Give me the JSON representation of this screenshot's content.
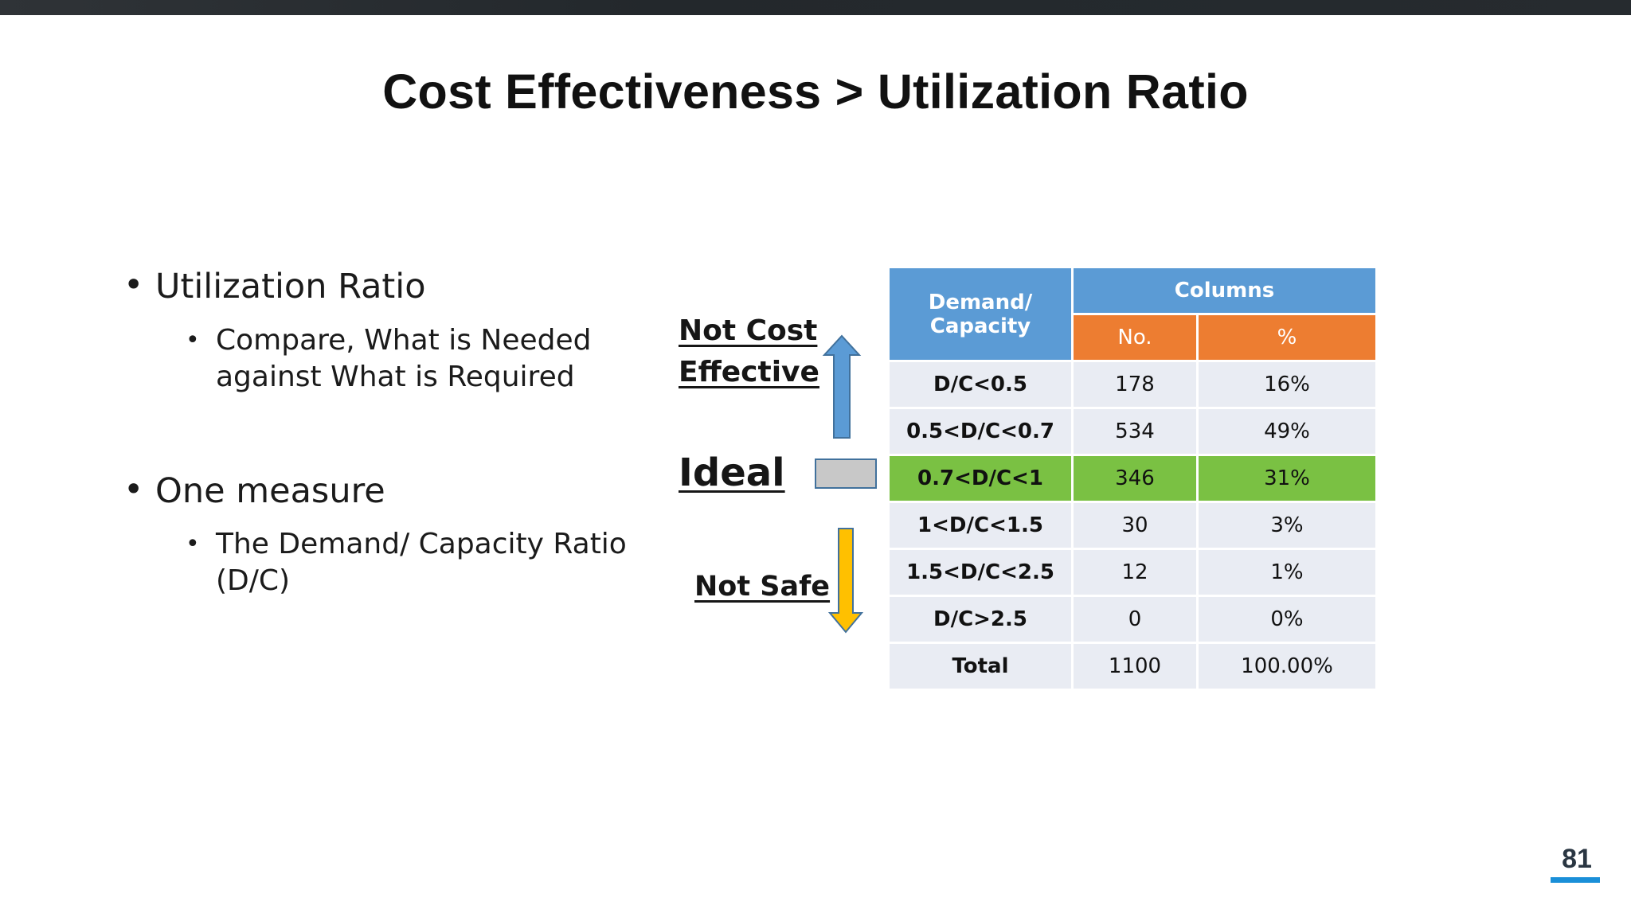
{
  "title": "Cost Effectiveness > Utilization Ratio",
  "bullets": [
    {
      "text": "Utilization Ratio",
      "sub": "Compare, What is Needed against What is Required"
    },
    {
      "text": "One measure",
      "sub": "The Demand/ Capacity Ratio (D/C)"
    }
  ],
  "labels": {
    "not_cost_effective_line1": "Not Cost",
    "not_cost_effective_line2": "Effective",
    "ideal": "Ideal",
    "not_safe": "Not Safe"
  },
  "table": {
    "header_dc": "Demand/ Capacity",
    "header_columns": "Columns",
    "header_no": "No.",
    "header_pct": "%",
    "rows": [
      {
        "range": "D/C<0.5",
        "no": "178",
        "pct": "16%"
      },
      {
        "range": "0.5<D/C<0.7",
        "no": "534",
        "pct": "49%"
      },
      {
        "range": "0.7<D/C<1",
        "no": "346",
        "pct": "31%"
      },
      {
        "range": "1<D/C<1.5",
        "no": "30",
        "pct": "3%"
      },
      {
        "range": "1.5<D/C<2.5",
        "no": "12",
        "pct": "1%"
      },
      {
        "range": "D/C>2.5",
        "no": "0",
        "pct": "0%"
      },
      {
        "range": "Total",
        "no": "1100",
        "pct": "100.00%"
      }
    ],
    "highlight_color": "#7ac143",
    "header_blue": "#5b9bd5",
    "header_orange": "#ed7d31"
  },
  "icons": {
    "up_arrow": "arrow-up-icon",
    "ideal_box": "rectangle-icon",
    "down_arrow": "arrow-down-icon"
  },
  "page_number": "81"
}
